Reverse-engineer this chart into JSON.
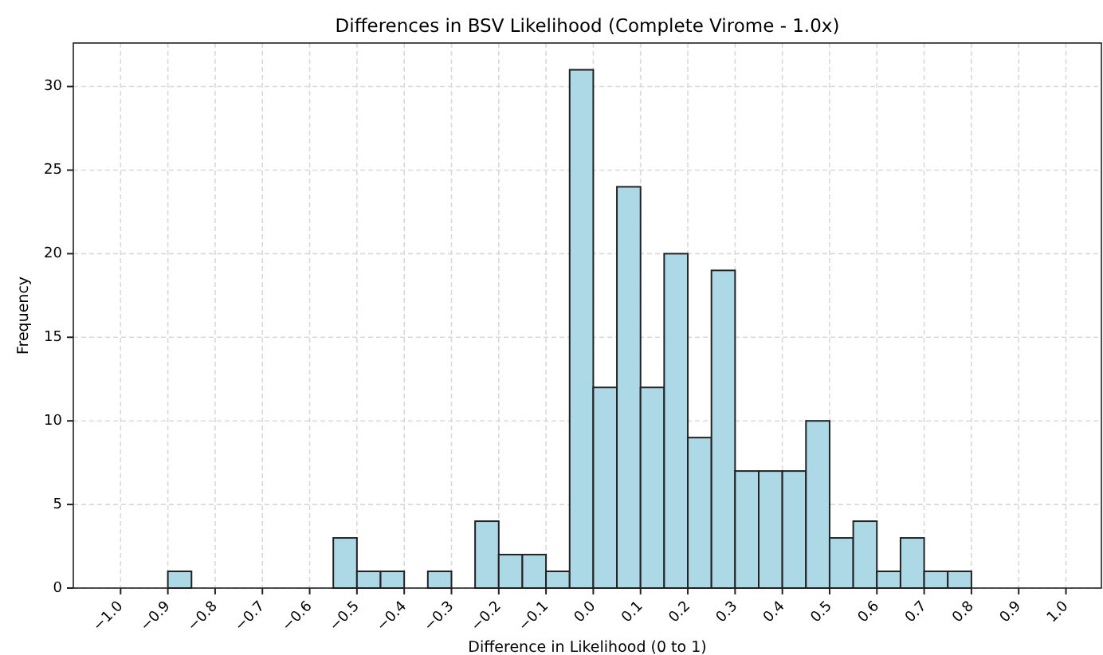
{
  "chart_data": {
    "type": "histogram",
    "title": "Differences in BSV Likelihood (Complete Virome - 1.0x)",
    "xlabel": "Difference in Likelihood (0 to 1)",
    "ylabel": "Frequency",
    "color": "#add8e6",
    "bins": [
      -1.0,
      -0.95,
      -0.9,
      -0.85,
      -0.8,
      -0.75,
      -0.7,
      -0.65,
      -0.6,
      -0.55,
      -0.5,
      -0.45,
      -0.4,
      -0.35,
      -0.3,
      -0.25,
      -0.2,
      -0.15,
      -0.1,
      -0.05,
      0.0,
      0.05,
      0.1,
      0.15,
      0.2,
      0.25,
      0.3,
      0.35,
      0.4,
      0.45,
      0.5,
      0.55,
      0.6,
      0.65,
      0.7,
      0.75,
      0.8,
      0.85,
      0.9,
      0.95,
      1.0
    ],
    "values": [
      0,
      0,
      1,
      0,
      0,
      0,
      0,
      0,
      0,
      3,
      1,
      1,
      0,
      1,
      0,
      4,
      2,
      2,
      1,
      31,
      12,
      24,
      12,
      20,
      9,
      19,
      7,
      7,
      7,
      10,
      3,
      4,
      1,
      3,
      1,
      1,
      0,
      0,
      0,
      0
    ],
    "xlim": [
      -1.1,
      1.075
    ],
    "ylim": [
      0,
      32.6
    ],
    "xticks": [
      {
        "value": -1.0,
        "label": "−1.0"
      },
      {
        "value": -0.9,
        "label": "−0.9"
      },
      {
        "value": -0.8,
        "label": "−0.8"
      },
      {
        "value": -0.7,
        "label": "−0.7"
      },
      {
        "value": -0.6,
        "label": "−0.6"
      },
      {
        "value": -0.5,
        "label": "−0.5"
      },
      {
        "value": -0.4,
        "label": "−0.4"
      },
      {
        "value": -0.3,
        "label": "−0.3"
      },
      {
        "value": -0.2,
        "label": "−0.2"
      },
      {
        "value": -0.1,
        "label": "−0.1"
      },
      {
        "value": 0.0,
        "label": "0.0"
      },
      {
        "value": 0.1,
        "label": "0.1"
      },
      {
        "value": 0.2,
        "label": "0.2"
      },
      {
        "value": 0.3,
        "label": "0.3"
      },
      {
        "value": 0.4,
        "label": "0.4"
      },
      {
        "value": 0.5,
        "label": "0.5"
      },
      {
        "value": 0.6,
        "label": "0.6"
      },
      {
        "value": 0.7,
        "label": "0.7"
      },
      {
        "value": 0.8,
        "label": "0.8"
      },
      {
        "value": 0.9,
        "label": "0.9"
      },
      {
        "value": 1.0,
        "label": "1.0"
      }
    ],
    "yticks": [
      0,
      5,
      10,
      15,
      20,
      25,
      30
    ],
    "grid": true
  }
}
